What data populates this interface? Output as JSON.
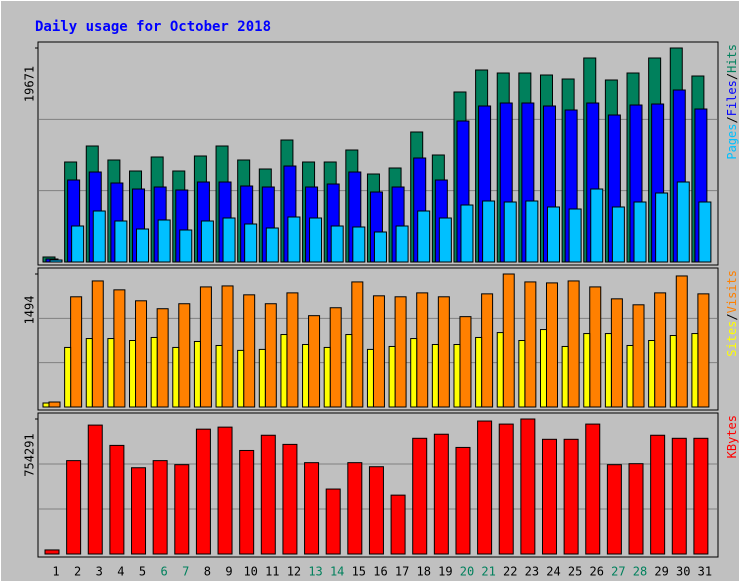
{
  "chart_data": {
    "type": "bar",
    "title": "Daily usage for October 2018",
    "legend_separator": "/",
    "categories": [
      "1",
      "2",
      "3",
      "4",
      "5",
      "6",
      "7",
      "8",
      "9",
      "10",
      "11",
      "12",
      "13",
      "14",
      "15",
      "16",
      "17",
      "18",
      "19",
      "20",
      "21",
      "22",
      "23",
      "24",
      "25",
      "26",
      "27",
      "28",
      "29",
      "30",
      "31"
    ],
    "category_colors": [
      "#000000",
      "#000000",
      "#000000",
      "#000000",
      "#000000",
      "#00805c",
      "#00805c",
      "#000000",
      "#000000",
      "#000000",
      "#000000",
      "#000000",
      "#00805c",
      "#00805c",
      "#000000",
      "#000000",
      "#000000",
      "#000000",
      "#000000",
      "#00805c",
      "#00805c",
      "#000000",
      "#000000",
      "#000000",
      "#000000",
      "#000000",
      "#00805c",
      "#00805c",
      "#000000",
      "#000000",
      "#000000"
    ],
    "panels": [
      {
        "ylim": [
          0,
          19671
        ],
        "yticks": [
          19671
        ],
        "grid": true,
        "series": [
          {
            "name": "Hits",
            "color": "#00805c",
            "values": [
              460,
              9192,
              10663,
              9376,
              8365,
              9652,
              8365,
              9744,
              10663,
              9376,
              8549,
              11214,
              9192,
              9192,
              10295,
              8089,
              8641,
              11950,
              9836,
              15627,
              17649,
              17373,
              17373,
              17189,
              16821,
              18752,
              16730,
              17373,
              18752,
              19671,
              17097
            ]
          },
          {
            "name": "Files",
            "color": "#0000ff",
            "values": [
              276,
              7537,
              8273,
              7262,
              6710,
              6894,
              6618,
              7354,
              7354,
              6986,
              6894,
              8824,
              6894,
              7170,
              8273,
              6434,
              6894,
              9560,
              7537,
              12961,
              14340,
              14615,
              14615,
              14340,
              13972,
              14615,
              13512,
              14431,
              14523,
              15810,
              14064
            ]
          },
          {
            "name": "Pages",
            "color": "#00c0ff",
            "values": [
              184,
              3309,
              4688,
              3769,
              3033,
              3861,
              2941,
              3769,
              4044,
              3493,
              3125,
              4136,
              4044,
              3309,
              3217,
              2758,
              3309,
              4688,
              4044,
              5239,
              5607,
              5515,
              5607,
              5056,
              4872,
              6710,
              5056,
              5515,
              6342,
              7354,
              5515
            ]
          }
        ]
      },
      {
        "ylim": [
          0,
          1494
        ],
        "yticks": [
          1494
        ],
        "grid": true,
        "series": [
          {
            "name": "Visits",
            "color": "#ff8000",
            "values": [
              56,
              1238,
              1416,
              1316,
              1193,
              1104,
              1160,
              1349,
              1360,
              1260,
              1160,
              1282,
              1026,
              1115,
              1405,
              1249,
              1238,
              1282,
              1238,
              1015,
              1271,
              1494,
              1405,
              1394,
              1416,
              1349,
              1215,
              1148,
              1282,
              1472,
              1271
            ]
          },
          {
            "name": "Sites",
            "color": "#ffff00",
            "values": [
              45,
              669,
              769,
              769,
              747,
              781,
              669,
              736,
              691,
              636,
              647,
              814,
              702,
              669,
              814,
              647,
              680,
              769,
              702,
              702,
              781,
              836,
              747,
              870,
              680,
              825,
              825,
              691,
              747,
              803,
              825
            ]
          }
        ]
      },
      {
        "ylim": [
          0,
          754291
        ],
        "yticks": [
          754291
        ],
        "grid": true,
        "series": [
          {
            "name": "KBytes",
            "color": "#ff0000",
            "values": [
              22684,
              521732,
              720217,
              606797,
              482035,
              521732,
              499048,
              697533,
              708875,
              578442,
              663507,
              612468,
              510390,
              362944,
              510390,
              487706,
              328918,
              646494,
              669178,
              595455,
              742901,
              725888,
              754291,
              640823,
              640823,
              725888,
              499048,
              504719,
              663507,
              646494,
              646494
            ]
          }
        ]
      }
    ]
  }
}
